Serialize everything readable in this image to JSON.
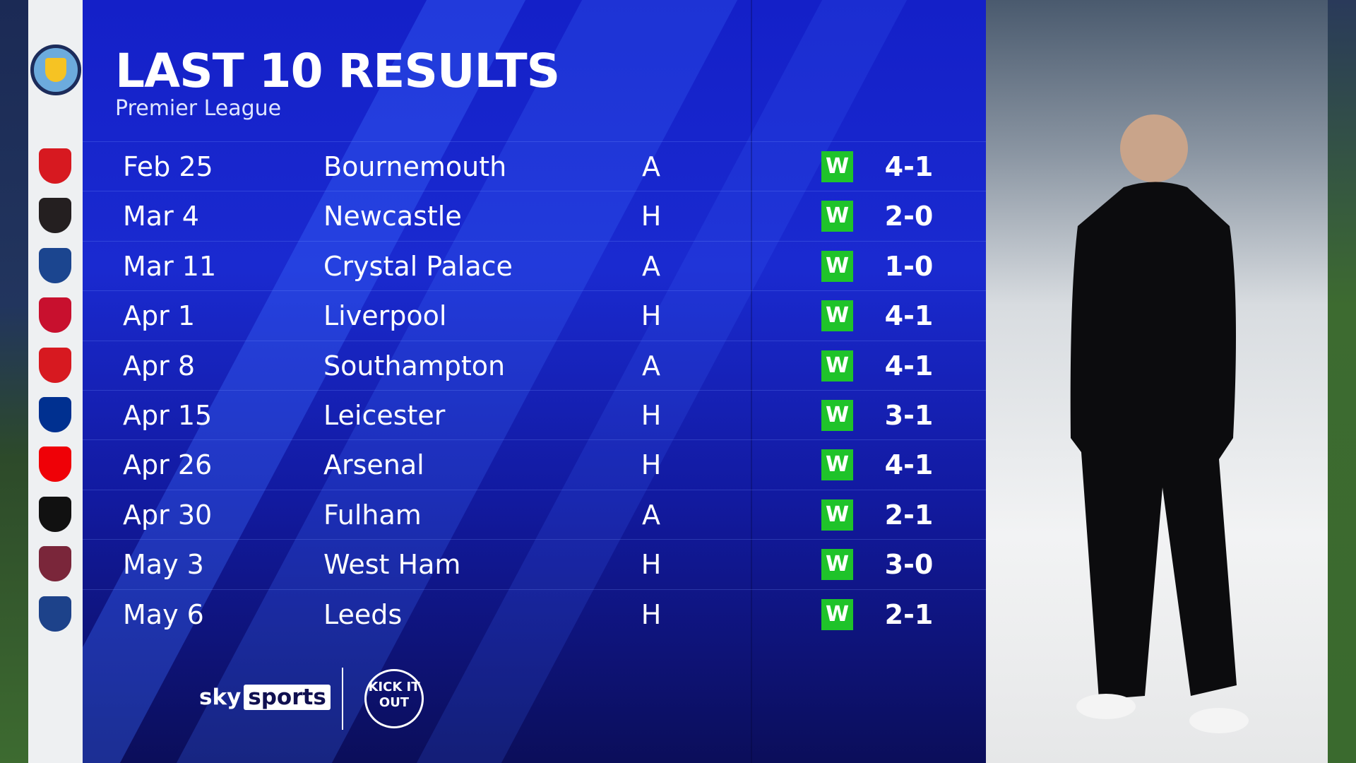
{
  "title": "LAST 10 RESULTS",
  "subtitle": "Premier League",
  "team_crest": "manchester-city-crest",
  "colors": {
    "panel": "#1420c8",
    "win": "#1fc32a"
  },
  "results": [
    {
      "date": "Feb 25",
      "opponent": "Bournemouth",
      "venue": "A",
      "result": "W",
      "score": "4-1",
      "crest": "bournemouth-crest",
      "crest_color": "#d71920"
    },
    {
      "date": "Mar 4",
      "opponent": "Newcastle",
      "venue": "H",
      "result": "W",
      "score": "2-0",
      "crest": "newcastle-crest",
      "crest_color": "#241f20"
    },
    {
      "date": "Mar 11",
      "opponent": "Crystal Palace",
      "venue": "A",
      "result": "W",
      "score": "1-0",
      "crest": "crystal-palace-crest",
      "crest_color": "#1b458f"
    },
    {
      "date": "Apr 1",
      "opponent": "Liverpool",
      "venue": "H",
      "result": "W",
      "score": "4-1",
      "crest": "liverpool-crest",
      "crest_color": "#c8102e"
    },
    {
      "date": "Apr 8",
      "opponent": "Southampton",
      "venue": "A",
      "result": "W",
      "score": "4-1",
      "crest": "southampton-crest",
      "crest_color": "#d71920"
    },
    {
      "date": "Apr 15",
      "opponent": "Leicester",
      "venue": "H",
      "result": "W",
      "score": "3-1",
      "crest": "leicester-crest",
      "crest_color": "#003090"
    },
    {
      "date": "Apr 26",
      "opponent": "Arsenal",
      "venue": "H",
      "result": "W",
      "score": "4-1",
      "crest": "arsenal-crest",
      "crest_color": "#ef0107"
    },
    {
      "date": "Apr 30",
      "opponent": "Fulham",
      "venue": "A",
      "result": "W",
      "score": "2-1",
      "crest": "fulham-crest",
      "crest_color": "#111111"
    },
    {
      "date": "May 3",
      "opponent": "West Ham",
      "venue": "H",
      "result": "W",
      "score": "3-0",
      "crest": "west-ham-crest",
      "crest_color": "#7a263a"
    },
    {
      "date": "May 6",
      "opponent": "Leeds",
      "venue": "H",
      "result": "W",
      "score": "2-1",
      "crest": "leeds-crest",
      "crest_color": "#1d428a"
    }
  ],
  "footer": {
    "sky": "sky",
    "sports": "sports",
    "partner_logo": "KICK IT OUT"
  }
}
